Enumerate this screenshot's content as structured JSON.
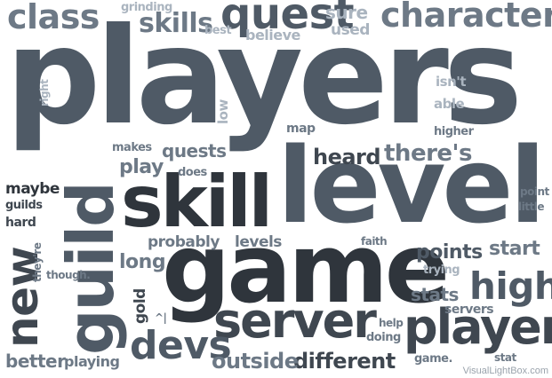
{
  "words": {
    "players": "players",
    "level": "level",
    "game": "game",
    "skill": "skill",
    "guild": "guild",
    "quest": "quest",
    "character": "character",
    "class": "class",
    "player": "player",
    "server": "server",
    "new": "new",
    "high": "high",
    "devs": "devs",
    "skills": "skills",
    "different": "different",
    "outside": "outside",
    "theres": "there's",
    "heard": "heard",
    "quests": "quests",
    "play": "play",
    "points": "points",
    "start": "start",
    "long": "long",
    "probably": "probably",
    "levels": "levels",
    "stats": "stats",
    "better": "better",
    "playing": "playing",
    "maybe": "maybe",
    "guilds": "guilds",
    "hard": "hard",
    "sure": "sure",
    "used": "used",
    "believe": "believe",
    "grinding": "grinding",
    "best": "best",
    "right": "right",
    "low": "low",
    "map": "map",
    "isnt": "isn't",
    "able": "able",
    "higher": "higher",
    "makes": "makes",
    "does": "does",
    "point": "point",
    "little": "little",
    "faith": "faith",
    "trying": "trying",
    "servers": "servers",
    "help": "help",
    "doing": "doing",
    "game_dot": "game.",
    "stat": "stat",
    "gold": "gold",
    "caret": "^|",
    "theyre": "they're",
    "though": "though."
  },
  "watermark": "VisualLightBox.com",
  "colors": {
    "dark": "#3f4750",
    "primary": "#4f5a66",
    "mid": "#6d7986",
    "light": "#8b98a6",
    "pale": "#aab4bf"
  }
}
